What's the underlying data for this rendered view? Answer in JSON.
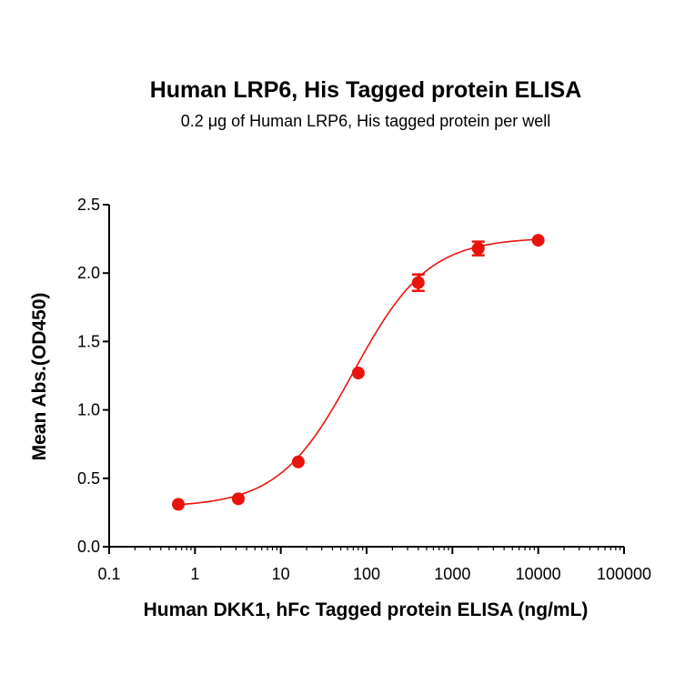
{
  "chart_data": {
    "type": "scatter",
    "title": "Human LRP6, His Tagged protein  ELISA",
    "subtitle": "0.2 μg of Human LRP6, His tagged protein per well",
    "xlabel": "Human DKK1, hFc Tagged protein  ELISA (ng/mL)",
    "ylabel": "Mean Abs.(OD450)",
    "x_scale": "log",
    "xlim": [
      0.1,
      100000
    ],
    "ylim": [
      0,
      2.5
    ],
    "x_tick_labels": [
      "0.1",
      "1",
      "10",
      "100",
      "1000",
      "10000",
      "100000"
    ],
    "y_tick_labels": [
      "0.0",
      "0.5",
      "1.0",
      "1.5",
      "2.0",
      "2.5"
    ],
    "grid": false,
    "color": "#e8140c",
    "series": [
      {
        "points": [
          {
            "x": 0.64,
            "y": 0.31,
            "err": 0.01
          },
          {
            "x": 3.2,
            "y": 0.35,
            "err": 0.01
          },
          {
            "x": 16,
            "y": 0.62,
            "err": 0.01
          },
          {
            "x": 80,
            "y": 1.27,
            "err": 0.01
          },
          {
            "x": 400,
            "y": 1.93,
            "err": 0.06
          },
          {
            "x": 2000,
            "y": 2.18,
            "err": 0.05
          },
          {
            "x": 10000,
            "y": 2.24,
            "err": 0.01
          }
        ]
      }
    ],
    "fit_curve": {
      "type": "4PL",
      "bottom": 0.29,
      "top": 2.26,
      "ec50": 70,
      "hill": 1.0
    }
  }
}
